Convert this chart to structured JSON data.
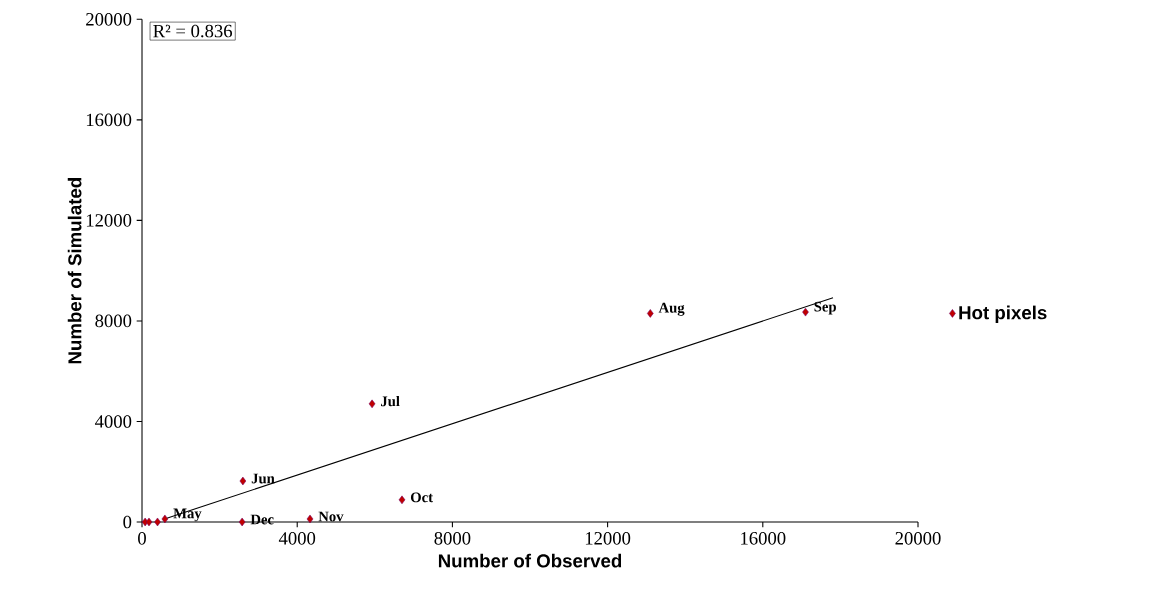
{
  "chart_data": {
    "type": "scatter",
    "xlabel": "Number of Observed",
    "ylabel": "Number of Simulated",
    "xlim": [
      0,
      20000
    ],
    "ylim": [
      0,
      20000
    ],
    "xticks": [
      0,
      4000,
      8000,
      12000,
      16000,
      20000
    ],
    "yticks": [
      0,
      4000,
      8000,
      12000,
      16000,
      20000
    ],
    "series": [
      {
        "name": "Hot pixels",
        "color": "#c00000",
        "marker": "diamond",
        "x": [
          80,
          180,
          400,
          590,
          2600,
          5930,
          13100,
          17100,
          6700,
          4330,
          2580
        ],
        "values": [
          0,
          0,
          0,
          120,
          1630,
          4700,
          8300,
          8350,
          880,
          120,
          0
        ]
      },
      {
        "type": "line",
        "color": "#000000",
        "x": [
          640,
          17810
        ],
        "values": [
          150,
          8920
        ]
      }
    ],
    "annotations": [
      "R² = 0.836",
      {
        "text": "May",
        "x": 590,
        "y": 120
      },
      {
        "text": "Jun",
        "x": 2600,
        "y": 1630
      },
      {
        "text": "Jul",
        "x": 5930,
        "y": 4700
      },
      {
        "text": "Aug",
        "x": 13100,
        "y": 8300
      },
      {
        "text": "Sep",
        "x": 17100,
        "y": 8350
      },
      {
        "text": "Oct",
        "x": 6700,
        "y": 880
      },
      {
        "text": "Nov",
        "x": 4330,
        "y": 120
      },
      {
        "text": "Dec",
        "x": 2580,
        "y": 0
      }
    ],
    "legend": "right",
    "grid": false
  }
}
